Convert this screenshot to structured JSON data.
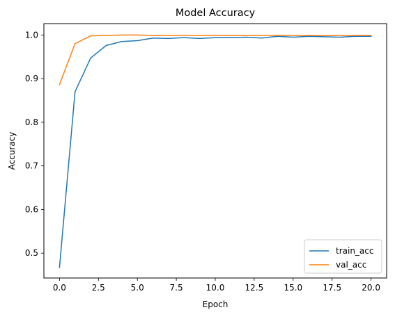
{
  "chart_data": {
    "type": "line",
    "title": "Model Accuracy",
    "xlabel": "Epoch",
    "ylabel": "Accuracy",
    "xlim": [
      -1.0,
      21.0
    ],
    "ylim": [
      0.443,
      1.026
    ],
    "xticks": [
      0,
      2.5,
      5,
      7.5,
      10,
      12.5,
      15,
      17.5,
      20
    ],
    "xtick_labels": [
      "0.0",
      "2.5",
      "5.0",
      "7.5",
      "10.0",
      "12.5",
      "15.0",
      "17.5",
      "20.0"
    ],
    "yticks": [
      0.5,
      0.6,
      0.7,
      0.8,
      0.9,
      1.0
    ],
    "ytick_labels": [
      "0.5",
      "0.6",
      "0.7",
      "0.8",
      "0.9",
      "1.0"
    ],
    "grid": false,
    "legend_position": "lower right",
    "x": [
      0,
      1,
      2,
      3,
      4,
      5,
      6,
      7,
      8,
      9,
      10,
      11,
      12,
      13,
      14,
      15,
      16,
      17,
      18,
      19,
      20
    ],
    "series": [
      {
        "name": "train_acc",
        "color": "#1f77b4",
        "values": [
          0.467,
          0.87,
          0.947,
          0.976,
          0.985,
          0.987,
          0.993,
          0.992,
          0.994,
          0.992,
          0.994,
          0.994,
          0.995,
          0.993,
          0.997,
          0.995,
          0.997,
          0.996,
          0.995,
          0.997,
          0.997
        ]
      },
      {
        "name": "val_acc",
        "color": "#ff7f0e",
        "values": [
          0.886,
          0.98,
          0.998,
          0.999,
          1.0,
          1.0,
          0.999,
          0.999,
          0.999,
          0.999,
          0.999,
          0.999,
          0.999,
          0.999,
          0.999,
          0.999,
          0.999,
          0.999,
          0.999,
          0.999,
          0.999
        ]
      }
    ]
  }
}
